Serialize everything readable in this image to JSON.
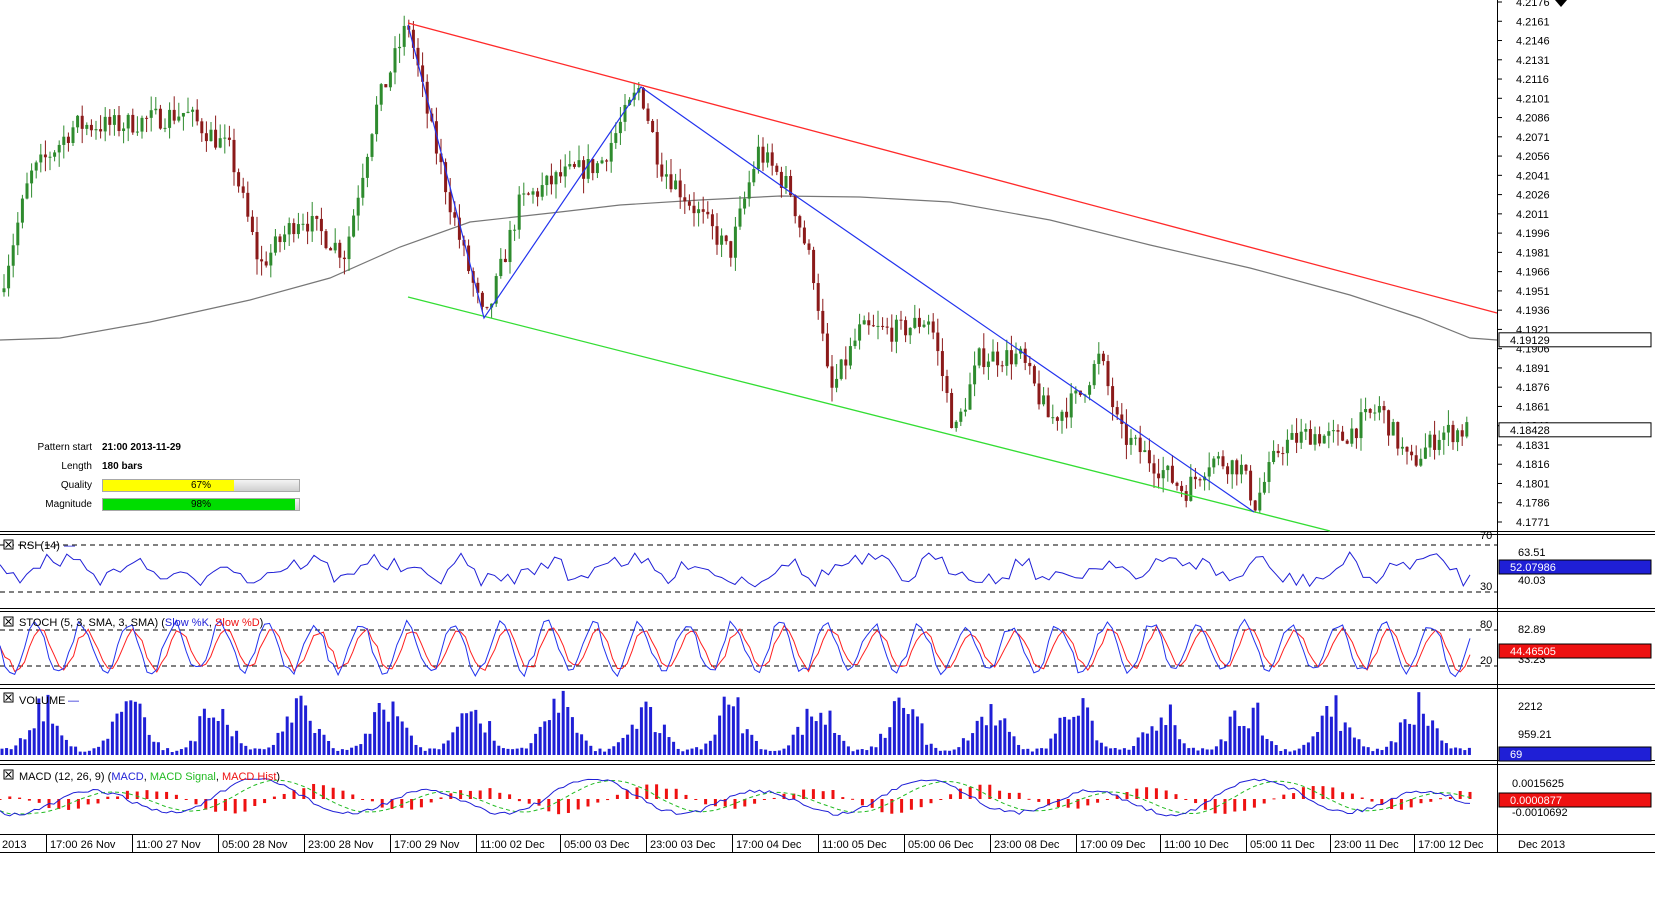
{
  "chart_data": {
    "type": "candlestick",
    "price_axis": {
      "ticks": [
        "4.2176",
        "4.2161",
        "4.2146",
        "4.2131",
        "4.2116",
        "4.2101",
        "4.2086",
        "4.2071",
        "4.2056",
        "4.2041",
        "4.2026",
        "4.2011",
        "4.1996",
        "4.1981",
        "4.1966",
        "4.1951",
        "4.1936",
        "4.1921",
        "4.1906",
        "4.1891",
        "4.1876",
        "4.1861",
        "4.1846",
        "4.1831",
        "4.1816",
        "4.1801",
        "4.1786",
        "4.1771"
      ],
      "current_ma_label": "4.19129",
      "current_price_label": "4.18428",
      "range": [
        4.1771,
        4.2176
      ]
    },
    "time_axis": [
      "2013",
      "17:00 26 Nov",
      "11:00 27 Nov",
      "05:00 28 Nov",
      "23:00 28 Nov",
      "17:00 29 Nov",
      "11:00 02 Dec",
      "05:00 03 Dec",
      "23:00 03 Dec",
      "17:00 04 Dec",
      "11:00 05 Dec",
      "05:00 06 Dec",
      "23:00 08 Dec",
      "17:00 09 Dec",
      "11:00 10 Dec",
      "05:00 11 Dec",
      "23:00 11 Dec",
      "17:00 12 Dec",
      "Dec 2013"
    ],
    "pattern": {
      "start_label": "Pattern start",
      "start_value": "21:00 2013-11-29",
      "length_label": "Length",
      "length_value": "180 bars",
      "quality_label": "Quality",
      "quality_value": "67%",
      "quality_fraction": 0.67,
      "magnitude_label": "Magnitude",
      "magnitude_value": "98%",
      "magnitude_fraction": 0.98
    },
    "panels": {
      "rsi": {
        "title": "RSI (14)",
        "axis": [
          "70",
          "63.51",
          "40.03",
          "30"
        ],
        "current": "52.07986"
      },
      "stoch": {
        "title_prefix": "STOCH (5, 3, SMA, 3, SMA) (",
        "k_label": "Slow %K",
        "sep": ", ",
        "d_label": "Slow %D",
        "title_suffix": ")",
        "axis": [
          "80",
          "82.89",
          "33.23",
          "20"
        ],
        "current": "44.46505"
      },
      "volume": {
        "title": "VOLUME",
        "axis": [
          "2212",
          "959.21"
        ],
        "current": "69"
      },
      "macd": {
        "title_prefix": "MACD (12, 26, 9) (",
        "macd_label": "MACD",
        "sep": ", ",
        "signal_label": "MACD Signal",
        "hist_label": "MACD Hist",
        "title_suffix": ")",
        "axis": [
          "0.0015625",
          "-0.0010692"
        ],
        "current": "0.0000877"
      }
    },
    "colors": {
      "up_candle": "#2e8b2e",
      "down_candle": "#8b1a1a",
      "resistance_line": "#ff2a2a",
      "support_line": "#33dd33",
      "zigzag": "#2233ee",
      "moving_average": "#777777",
      "k_line": "#2233ee",
      "d_line": "#ff2020",
      "volume_bar": "#1f1fd6",
      "macd_hist": "#ee1111",
      "macd_signal": "#22bb22",
      "current_price_box": "#ffffff",
      "rsi_box": "#1f1fd6",
      "stoch_box": "#ee1111",
      "volume_box": "#1f1fd6",
      "macd_box": "#ee1111",
      "quality_fill": "#ffff00",
      "magnitude_fill": "#00dd00"
    }
  }
}
